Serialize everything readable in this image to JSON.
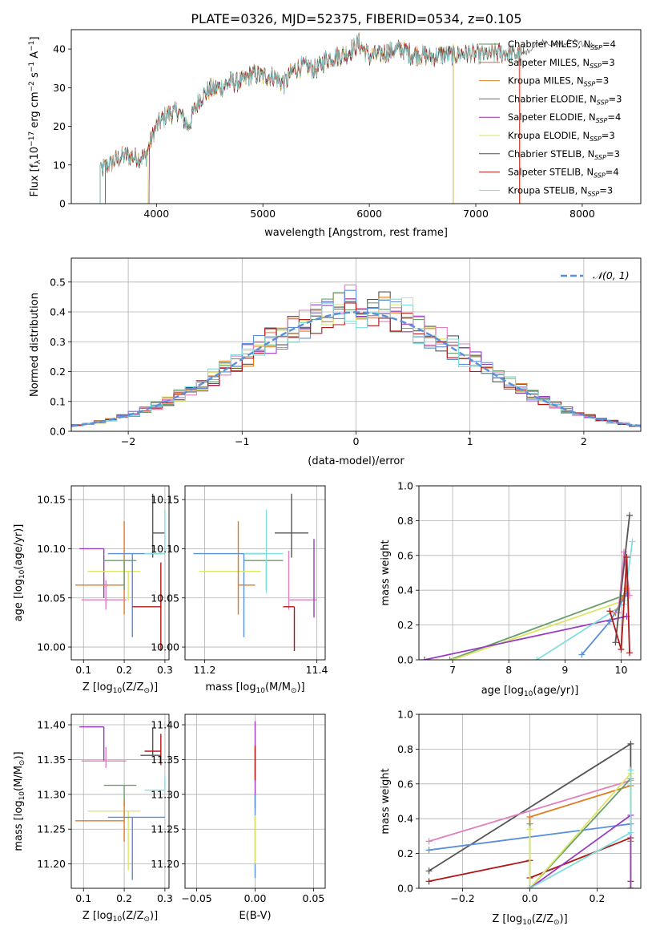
{
  "figure": {
    "title": "PLATE=0326, MJD=52375, FIBERID=0534, z=0.105"
  },
  "colors": {
    "Chabrier MILES": "#5c8d5c",
    "Salpeter MILES": "#e8623e",
    "Kroupa MILES": "#d98a2b",
    "Chabrier ELODIE": "#4a7d4a",
    "Salpeter ELODIE": "#9b30b0",
    "Kroupa ELODIE": "#d7e060",
    "Chabrier STELIB": "#505050",
    "Salpeter STELIB": "#b01818",
    "Kroupa STELIB": "#7fdcdc",
    "blue": "#5b8fdb",
    "pink": "#e27fbf",
    "orange": "#e07b20",
    "purple": "#9a3cc0",
    "yellow": "#dde56a",
    "green": "#6aa06a",
    "gray": "#555555",
    "red": "#b01818",
    "cyan": "#80dede"
  },
  "chart_data": [
    {
      "id": "spectrum",
      "type": "line",
      "title": "PLATE=0326, MJD=52375, FIBERID=0534, z=0.105",
      "xlabel": "wavelength [Angstrom, rest frame]",
      "ylabel": "Flux [f_λ 10^-17 erg cm^-2 s^-1 A^-1]",
      "xlim": [
        3200,
        8550
      ],
      "ylim": [
        0,
        45
      ],
      "xticks": [
        "4000",
        "5000",
        "6000",
        "7000",
        "8000"
      ],
      "yticks": [
        "0",
        "10",
        "20",
        "30",
        "40"
      ],
      "legend": "upper right",
      "grid": false,
      "continuum": {
        "x": [
          3460,
          3520,
          3600,
          3700,
          3800,
          3900,
          3950,
          4000,
          4100,
          4200,
          4300,
          4400,
          4500,
          4600,
          4700,
          4800,
          4900,
          5000,
          5100,
          5200,
          5300,
          5400,
          5500,
          5600,
          5700,
          5800,
          5900,
          6000,
          6100,
          6200,
          6300,
          6400,
          6500,
          6600,
          6700,
          6800,
          6900,
          7000,
          7100,
          7200,
          7300,
          7400,
          7450
        ],
        "y": [
          8.5,
          9.5,
          11.0,
          12.5,
          12.0,
          12.0,
          16.5,
          20.0,
          23.0,
          24.0,
          20.0,
          27.0,
          29.5,
          30.0,
          31.5,
          31.5,
          33.5,
          33.0,
          33.0,
          31.0,
          35.0,
          35.5,
          34.5,
          37.5,
          38.0,
          39.0,
          41.5,
          38.0,
          38.5,
          39.5,
          40.0,
          38.5,
          38.5,
          38.0,
          38.5,
          38.5,
          39.0,
          38.5,
          38.5,
          39.0,
          39.0,
          38.5,
          38.5
        ]
      },
      "extended_model": {
        "x": [
          7450,
          7600,
          7750,
          7900,
          8050,
          8150
        ],
        "y": [
          38.5,
          42.0,
          41.0,
          42.0,
          41.0,
          40.5
        ]
      },
      "series": [
        {
          "name": "Chabrier MILES, N_SSP=4",
          "range": [
            3470,
            7420
          ]
        },
        {
          "name": "Salpeter MILES, N_SSP=3",
          "range": [
            3520,
            7410
          ]
        },
        {
          "name": "Kroupa MILES, N_SSP=3",
          "range": [
            3470,
            7420
          ]
        },
        {
          "name": "Chabrier ELODIE, N_SSP=3",
          "range": [
            3930,
            6790
          ]
        },
        {
          "name": "Salpeter ELODIE, N_SSP=4",
          "range": [
            3930,
            6790
          ]
        },
        {
          "name": "Kroupa ELODIE, N_SSP=3",
          "range": [
            3920,
            6790
          ]
        },
        {
          "name": "Chabrier STELIB, N_SSP=3",
          "range": [
            3470,
            8150
          ]
        },
        {
          "name": "Salpeter STELIB, N_SSP=4",
          "range": [
            3520,
            7410
          ]
        },
        {
          "name": "Kroupa STELIB, N_SSP=3",
          "range": [
            3470,
            7420
          ]
        }
      ]
    },
    {
      "id": "residuals",
      "type": "line",
      "xlabel": "(data-model)/error",
      "ylabel": "Normed distribution",
      "xlim": [
        -2.5,
        2.5
      ],
      "ylim": [
        0,
        0.58
      ],
      "xticks": [
        "−2",
        "−1",
        "0",
        "1",
        "2"
      ],
      "yticks": [
        "0.0",
        "0.1",
        "0.2",
        "0.3",
        "0.4",
        "0.5"
      ],
      "grid": true,
      "legend": "upper right",
      "reference": {
        "name": "𝒩(0, 1)",
        "mean": 0,
        "sigma": 1
      },
      "bin_width": 0.1,
      "series_note": "nine step histograms of the residual distributions, one per model; heights approximate a unit normal with scatter"
    },
    {
      "id": "age-vs-Z",
      "type": "scatter",
      "xlabel": "Z [log10(Z/Z⊙)]",
      "ylabel": "age [log10(age/yr)]",
      "xlim": [
        0.07,
        0.31
      ],
      "ylim": [
        9.987,
        10.164
      ],
      "xticks": [
        "0.1",
        "0.2",
        "0.3"
      ],
      "yticks": [
        "10.00",
        "10.05",
        "10.10",
        "10.15"
      ],
      "grid": true,
      "points": [
        {
          "color": "purple",
          "x": 0.15,
          "y": 10.1,
          "xerr": [
            0.06,
            0.0
          ],
          "yerr": [
            0.05,
            0.0
          ]
        },
        {
          "color": "orange",
          "x": 0.2,
          "y": 10.063,
          "xerr": [
            0.12,
            0.0
          ],
          "yerr": [
            0.03,
            0.065
          ]
        },
        {
          "color": "pink",
          "x": 0.155,
          "y": 10.048,
          "xerr": [
            0.06,
            0.05
          ],
          "yerr": [
            0.01,
            0.02
          ]
        },
        {
          "color": "yellow",
          "x": 0.21,
          "y": 10.077,
          "xerr": [
            0.1,
            0.03
          ],
          "yerr": [
            0.03,
            0.0
          ]
        },
        {
          "color": "green",
          "x": 0.2,
          "y": 10.088,
          "xerr": [
            0.05,
            0.03
          ],
          "yerr": [
            0.03,
            0.0
          ]
        },
        {
          "color": "blue",
          "x": 0.22,
          "y": 10.095,
          "xerr": [
            0.06,
            0.08
          ],
          "yerr": [
            0.085,
            0.0
          ]
        },
        {
          "color": "gray",
          "x": 0.27,
          "y": 10.116,
          "xerr": [
            0.0,
            0.03
          ],
          "yerr": [
            0.025,
            0.04
          ]
        },
        {
          "color": "red",
          "x": 0.29,
          "y": 10.041,
          "xerr": [
            0.07,
            0.0
          ],
          "yerr": [
            0.045,
            0.045
          ]
        },
        {
          "color": "cyan",
          "x": 0.3,
          "y": 10.095,
          "xerr": [
            0.05,
            0.0
          ],
          "yerr": [
            0.0,
            0.045
          ]
        }
      ]
    },
    {
      "id": "age-vs-mass",
      "type": "scatter",
      "xlabel": "mass [log10(M/M⊙)]",
      "ylabel": "",
      "xlim": [
        11.165,
        11.415
      ],
      "ylim": [
        9.987,
        10.164
      ],
      "xticks": [
        "11.2",
        "11.4"
      ],
      "yticks": [
        "10.00",
        "10.05",
        "10.10",
        "10.15"
      ],
      "grid": true,
      "points": [
        {
          "color": "blue",
          "x": 11.27,
          "y": 10.095,
          "xerr": [
            0.09,
            0.04
          ],
          "yerr": [
            0.085,
            0.0
          ]
        },
        {
          "color": "yellow",
          "x": 11.27,
          "y": 10.077,
          "xerr": [
            0.08,
            0.03
          ],
          "yerr": [
            0.0,
            0.0
          ]
        },
        {
          "color": "orange",
          "x": 11.26,
          "y": 10.063,
          "xerr": [
            0.0,
            0.03
          ],
          "yerr": [
            0.03,
            0.065
          ]
        },
        {
          "color": "green",
          "x": 11.31,
          "y": 10.088,
          "xerr": [
            0.04,
            0.03
          ],
          "yerr": [
            0.03,
            0.0
          ]
        },
        {
          "color": "cyan",
          "x": 11.31,
          "y": 10.095,
          "xerr": [
            0.04,
            0.03
          ],
          "yerr": [
            0.04,
            0.045
          ]
        },
        {
          "color": "gray",
          "x": 11.355,
          "y": 10.116,
          "xerr": [
            0.03,
            0.03
          ],
          "yerr": [
            0.025,
            0.04
          ]
        },
        {
          "color": "pink",
          "x": 11.35,
          "y": 10.048,
          "xerr": [
            0.0,
            0.05
          ],
          "yerr": [
            0.01,
            0.05
          ]
        },
        {
          "color": "purple",
          "x": 11.395,
          "y": 10.1,
          "xerr": [
            0.0,
            0.0
          ],
          "yerr": [
            0.07,
            0.01
          ]
        },
        {
          "color": "red",
          "x": 11.36,
          "y": 10.041,
          "xerr": [
            0.02,
            0.0
          ],
          "yerr": [
            0.045,
            0.0
          ]
        }
      ]
    },
    {
      "id": "weight-vs-age",
      "type": "line",
      "xlabel": "age [log10(age/yr)]",
      "ylabel": "mass weight",
      "xlim": [
        6.4,
        10.35
      ],
      "ylim": [
        0,
        1
      ],
      "xticks": [
        "7",
        "8",
        "9",
        "10"
      ],
      "yticks": [
        "0.0",
        "0.2",
        "0.4",
        "0.6",
        "0.8",
        "1.0"
      ],
      "grid": true,
      "series": [
        {
          "color": "green",
          "x": [
            6.95,
            10.05
          ],
          "y": [
            0.0,
            0.37
          ]
        },
        {
          "color": "yellow",
          "x": [
            7.0,
            10.05
          ],
          "y": [
            0.0,
            0.34
          ]
        },
        {
          "color": "purple",
          "x": [
            6.5,
            10.1
          ],
          "y": [
            0.0,
            0.25
          ]
        },
        {
          "color": "cyan",
          "x": [
            8.5,
            10.05,
            10.2
          ],
          "y": [
            0.0,
            0.32,
            0.68
          ]
        },
        {
          "color": "orange",
          "x": [
            9.9,
            10.1
          ],
          "y": [
            0.27,
            0.41
          ]
        },
        {
          "color": "blue",
          "x": [
            9.3,
            9.8,
            10.1
          ],
          "y": [
            0.03,
            0.22,
            0.38
          ]
        },
        {
          "color": "pink",
          "x": [
            9.95,
            10.05,
            10.15
          ],
          "y": [
            0.27,
            0.62,
            0.37
          ]
        },
        {
          "color": "gray",
          "x": [
            9.9,
            10.15
          ],
          "y": [
            0.1,
            0.83
          ]
        },
        {
          "color": "red",
          "x": [
            9.8,
            10.0,
            10.1,
            10.15
          ],
          "y": [
            0.28,
            0.06,
            0.59,
            0.04
          ]
        }
      ]
    },
    {
      "id": "mass-vs-Z",
      "type": "scatter",
      "xlabel": "Z [log10(Z/Z⊙)]",
      "ylabel": "mass [log10(M/M⊙)]",
      "xlim": [
        0.07,
        0.31
      ],
      "ylim": [
        11.165,
        11.415
      ],
      "xticks": [
        "0.1",
        "0.2",
        "0.3"
      ],
      "yticks": [
        "11.20",
        "11.25",
        "11.30",
        "11.35",
        "11.40"
      ],
      "grid": true,
      "points": [
        {
          "color": "purple",
          "x": 0.15,
          "y": 11.397,
          "xerr": [
            0.06,
            0.0
          ],
          "yerr": [
            0.05,
            0.0
          ]
        },
        {
          "color": "pink",
          "x": 0.155,
          "y": 11.348,
          "xerr": [
            0.06,
            0.05
          ],
          "yerr": [
            0.01,
            0.02
          ]
        },
        {
          "color": "green",
          "x": 0.2,
          "y": 11.313,
          "xerr": [
            0.05,
            0.03
          ],
          "yerr": [
            0.03,
            0.0
          ]
        },
        {
          "color": "yellow",
          "x": 0.21,
          "y": 11.276,
          "xerr": [
            0.1,
            0.03
          ],
          "yerr": [
            0.085,
            0.0
          ]
        },
        {
          "color": "orange",
          "x": 0.2,
          "y": 11.262,
          "xerr": [
            0.12,
            0.0
          ],
          "yerr": [
            0.03,
            0.03
          ]
        },
        {
          "color": "blue",
          "x": 0.22,
          "y": 11.267,
          "xerr": [
            0.06,
            0.08
          ],
          "yerr": [
            0.09,
            0.0
          ]
        },
        {
          "color": "gray",
          "x": 0.27,
          "y": 11.356,
          "xerr": [
            0.03,
            0.02
          ],
          "yerr": [
            0.0,
            0.04
          ]
        },
        {
          "color": "red",
          "x": 0.29,
          "y": 11.362,
          "xerr": [
            0.04,
            0.0
          ],
          "yerr": [
            0.02,
            0.025
          ]
        },
        {
          "color": "cyan",
          "x": 0.3,
          "y": 11.306,
          "xerr": [
            0.05,
            0.0
          ],
          "yerr": [
            0.0,
            0.02
          ]
        }
      ]
    },
    {
      "id": "mass-vs-EBV",
      "type": "scatter",
      "xlabel": "E(B-V)",
      "ylabel": "",
      "xlim": [
        -0.06,
        0.06
      ],
      "ylim": [
        11.165,
        11.415
      ],
      "xticks": [
        "−0.05",
        "0.00",
        "0.05"
      ],
      "yticks": [
        "11.20",
        "11.25",
        "11.30",
        "11.35",
        "11.40"
      ],
      "grid": true,
      "points": [
        {
          "color": "purple",
          "x": 0.0,
          "y": 11.34,
          "yerr": [
            0.06,
            0.065
          ]
        },
        {
          "color": "red",
          "x": 0.0,
          "y": 11.35,
          "yerr": [
            0.03,
            0.02
          ]
        },
        {
          "color": "blue",
          "x": 0.0,
          "y": 11.25,
          "yerr": [
            0.07,
            0.05
          ]
        },
        {
          "color": "yellow",
          "x": 0.0,
          "y": 11.24,
          "yerr": [
            0.04,
            0.03
          ]
        }
      ]
    },
    {
      "id": "weight-vs-Z",
      "type": "line",
      "xlabel": "Z [log10(Z/Z⊙)]",
      "ylabel": "mass weight",
      "xlim": [
        -0.33,
        0.33
      ],
      "ylim": [
        0,
        1
      ],
      "xticks": [
        "−0.2",
        "0.0",
        "0.2"
      ],
      "yticks": [
        "0.0",
        "0.2",
        "0.4",
        "0.6",
        "0.8",
        "1.0"
      ],
      "grid": true,
      "series": [
        {
          "color": "gray",
          "x": [
            -0.3,
            0.3,
            0.3
          ],
          "y": [
            0.1,
            0.83,
            0.0
          ]
        },
        {
          "color": "pink",
          "x": [
            -0.3,
            0.3,
            0.3
          ],
          "y": [
            0.27,
            0.62,
            0.0
          ]
        },
        {
          "color": "blue",
          "x": [
            -0.3,
            0.3,
            0.3
          ],
          "y": [
            0.22,
            0.37,
            0.0
          ]
        },
        {
          "color": "red",
          "x": [
            -0.3,
            0.0,
            0.0,
            0.3,
            0.3
          ],
          "y": [
            0.04,
            0.16,
            0.06,
            0.29,
            0.04
          ]
        },
        {
          "color": "orange",
          "x": [
            0.0,
            0.0,
            0.3,
            0.3
          ],
          "y": [
            0.0,
            0.41,
            0.59,
            0.27
          ]
        },
        {
          "color": "green",
          "x": [
            0.0,
            0.0,
            0.3,
            0.3
          ],
          "y": [
            0.37,
            0.0,
            0.63,
            0.0
          ]
        },
        {
          "color": "yellow",
          "x": [
            0.0,
            0.0,
            0.3,
            0.3
          ],
          "y": [
            0.34,
            0.0,
            0.66,
            0.0
          ]
        },
        {
          "color": "purple",
          "x": [
            0.0,
            0.0,
            0.3,
            0.3
          ],
          "y": [
            0.0,
            0.0,
            0.42,
            0.0
          ]
        },
        {
          "color": "cyan",
          "x": [
            0.0,
            0.0,
            0.3,
            0.3
          ],
          "y": [
            0.0,
            0.0,
            0.32,
            0.68
          ]
        }
      ]
    }
  ]
}
